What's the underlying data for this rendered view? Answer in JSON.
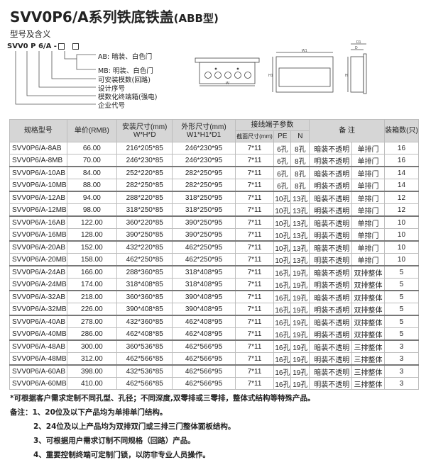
{
  "title": "SVV0P6/A系列铁底铁盖",
  "title_suffix": "(ABB型)",
  "model_section": {
    "heading": "型号及含义",
    "code_parts": [
      "SVV0",
      "P",
      "6/A -"
    ],
    "labels": [
      "AB: 暗装、白色门",
      "MB: 明装、白色门",
      "可安装模数(回路)",
      "设计序号",
      "模数化终端箱(强电)",
      "企业代号"
    ]
  },
  "diagram_labels": {
    "w": "W",
    "w1": "W1",
    "h1": "H1",
    "h": "H",
    "d": "D",
    "d1": "D1"
  },
  "table": {
    "headers": {
      "model": "规格型号",
      "price": "单价(RMB)",
      "install": "安装尺寸(mm)",
      "install_sub": "W*H*D",
      "outer": "外形尺寸(mm)",
      "outer_sub": "W1*H1*D1",
      "terminal": "接线端子参数",
      "section": "截面尺寸(mm)",
      "pe": "PE",
      "n": "N",
      "remark": "备 注",
      "qty": "装箱数(只)"
    },
    "rows": [
      [
        "SVV0P6/A-8AB",
        "66.00",
        "216*205*85",
        "246*230*95",
        "7*11",
        "6孔",
        "8孔",
        "暗装不透明",
        "单排门",
        "16"
      ],
      [
        "SVV0P6/A-8MB",
        "70.00",
        "246*230*85",
        "246*230*95",
        "7*11",
        "6孔",
        "8孔",
        "明装不透明",
        "单排门",
        "16"
      ],
      [
        "SVV0P6/A-10AB",
        "84.00",
        "252*220*85",
        "282*250*95",
        "7*11",
        "6孔",
        "8孔",
        "暗装不透明",
        "单排门",
        "14"
      ],
      [
        "SVV0P6/A-10MB",
        "88.00",
        "282*250*85",
        "282*250*95",
        "7*11",
        "6孔",
        "8孔",
        "明装不透明",
        "单排门",
        "14"
      ],
      [
        "SVV0P6/A-12AB",
        "94.00",
        "288*220*85",
        "318*250*95",
        "7*11",
        "10孔",
        "13孔",
        "暗装不透明",
        "单排门",
        "12"
      ],
      [
        "SVV0P6/A-12MB",
        "98.00",
        "318*250*85",
        "318*250*95",
        "7*11",
        "10孔",
        "13孔",
        "明装不透明",
        "单排门",
        "12"
      ],
      [
        "SVV0P6/A-16AB",
        "122.00",
        "360*220*85",
        "390*250*95",
        "7*11",
        "10孔",
        "13孔",
        "暗装不透明",
        "单排门",
        "10"
      ],
      [
        "SVV0P6/A-16MB",
        "128.00",
        "390*250*85",
        "390*250*95",
        "7*11",
        "10孔",
        "13孔",
        "明装不透明",
        "单排门",
        "10"
      ],
      [
        "SVV0P6/A-20AB",
        "152.00",
        "432*220*85",
        "462*250*95",
        "7*11",
        "10孔",
        "13孔",
        "暗装不透明",
        "单排门",
        "10"
      ],
      [
        "SVV0P6/A-20MB",
        "158.00",
        "462*250*85",
        "462*250*95",
        "7*11",
        "10孔",
        "13孔",
        "明装不透明",
        "单排门",
        "10"
      ],
      [
        "SVV0P6/A-24AB",
        "166.00",
        "288*360*85",
        "318*408*95",
        "7*11",
        "16孔",
        "19孔",
        "暗装不透明",
        "双排整体",
        "5"
      ],
      [
        "SVV0P6/A-24MB",
        "174.00",
        "318*408*85",
        "318*408*95",
        "7*11",
        "16孔",
        "19孔",
        "明装不透明",
        "双排整体",
        "5"
      ],
      [
        "SVV0P6/A-32AB",
        "218.00",
        "360*360*85",
        "390*408*95",
        "7*11",
        "16孔",
        "19孔",
        "暗装不透明",
        "双排整体",
        "5"
      ],
      [
        "SVV0P6/A-32MB",
        "226.00",
        "390*408*85",
        "390*408*95",
        "7*11",
        "16孔",
        "19孔",
        "明装不透明",
        "双排整体",
        "5"
      ],
      [
        "SVV0P6/A-40AB",
        "278.00",
        "432*360*85",
        "462*408*95",
        "7*11",
        "16孔",
        "19孔",
        "暗装不透明",
        "双排整体",
        "5"
      ],
      [
        "SVV0P6/A-40MB",
        "286.00",
        "462*408*85",
        "462*408*95",
        "7*11",
        "16孔",
        "19孔",
        "明装不透明",
        "双排整体",
        "5"
      ],
      [
        "SVV0P6/A-48AB",
        "300.00",
        "360*536*85",
        "462*566*95",
        "7*11",
        "16孔",
        "19孔",
        "暗装不透明",
        "三排整体",
        "3"
      ],
      [
        "SVV0P6/A-48MB",
        "312.00",
        "462*566*85",
        "462*566*95",
        "7*11",
        "16孔",
        "19孔",
        "明装不透明",
        "三排整体",
        "3"
      ],
      [
        "SVV0P6/A-60AB",
        "398.00",
        "432*536*85",
        "462*566*95",
        "7*11",
        "16孔",
        "19孔",
        "暗装不透明",
        "三排整体",
        "3"
      ],
      [
        "SVV0P6/A-60MB",
        "410.00",
        "462*566*85",
        "462*566*95",
        "7*11",
        "16孔",
        "19孔",
        "明装不透明",
        "三排整体",
        "3"
      ]
    ]
  },
  "notes": {
    "star": "*可根据客户需求定制不同孔型、孔径；不同深度,双零排或三零排，整体式结构等特殊产品。",
    "prefix": "备注：",
    "items": [
      "1、20位及以下产品均为单排单门结构。",
      "2、24位及以上产品均为双排双门或三排三门整体面板结构。",
      "3、可根据用户需求订制不同规格（回路）产品。",
      "4、重要控制终端可定制门锁，以防非专业人员操作。"
    ]
  }
}
